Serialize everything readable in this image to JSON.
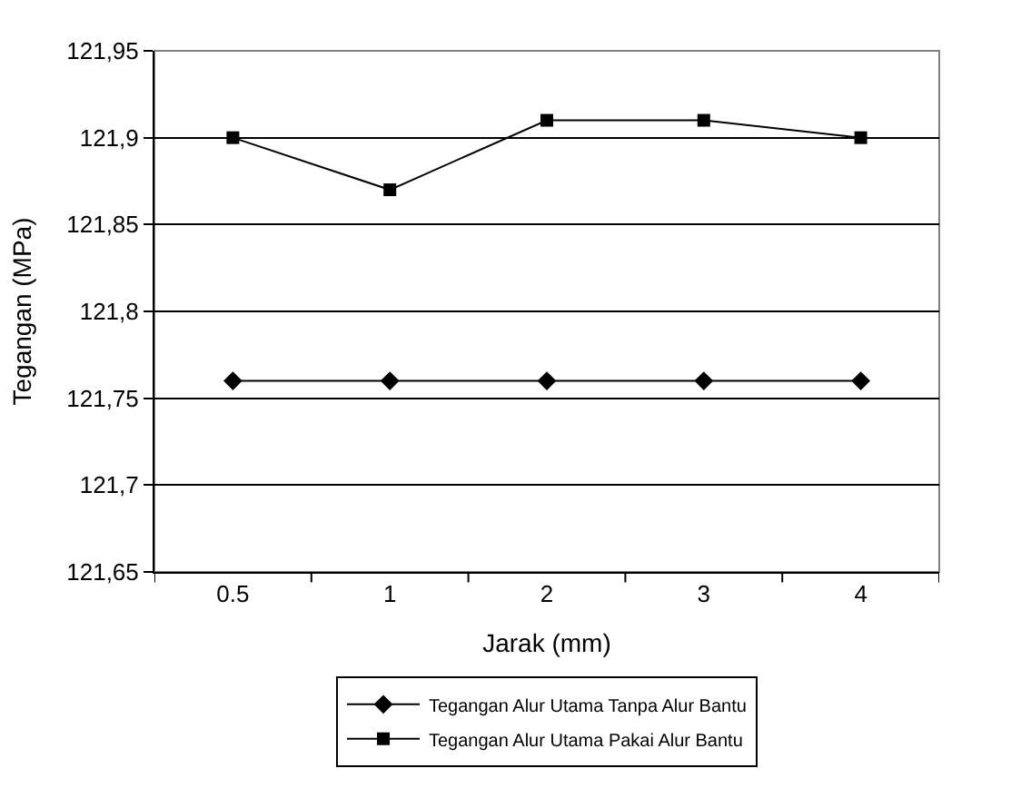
{
  "chart_data": {
    "type": "line",
    "xlabel": "Jarak (mm)",
    "ylabel": "Tegangan (MPa)",
    "categories": [
      "0.5",
      "1",
      "2",
      "3",
      "4"
    ],
    "series": [
      {
        "name": "Tegangan Alur Utama Tanpa Alur Bantu",
        "color": "#000000",
        "marker": "diamond",
        "values": [
          121.76,
          121.76,
          121.76,
          121.76,
          121.76
        ]
      },
      {
        "name": "Tegangan Alur Utama Pakai Alur Bantu",
        "color": "#000000",
        "marker": "square",
        "values": [
          121.9,
          121.87,
          121.91,
          121.91,
          121.9
        ]
      }
    ],
    "ylim": [
      121.65,
      121.95
    ],
    "yticks": [
      {
        "value": 121.65,
        "label": "121,65"
      },
      {
        "value": 121.7,
        "label": "121,7"
      },
      {
        "value": 121.75,
        "label": "121,75"
      },
      {
        "value": 121.8,
        "label": "121,8"
      },
      {
        "value": 121.85,
        "label": "121,85"
      },
      {
        "value": 121.9,
        "label": "121,9"
      },
      {
        "value": 121.95,
        "label": "121,95"
      }
    ],
    "grid": "y",
    "legend": "bottom",
    "line_style": "solid"
  }
}
